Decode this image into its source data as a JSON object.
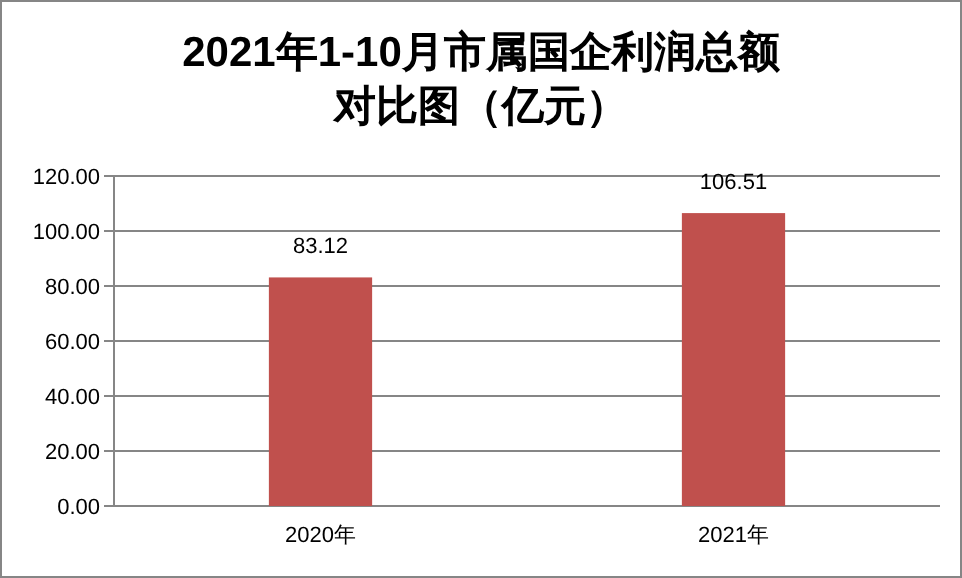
{
  "chart_data": {
    "type": "bar",
    "title": "2021年1-10月市属国企利润总额对比图（亿元）",
    "categories": [
      "2020年",
      "2021年"
    ],
    "values": [
      83.12,
      106.51
    ],
    "color": "#c0504d",
    "ylim": [
      0,
      120
    ],
    "yticks": [
      {
        "value": 0,
        "label": "0.00"
      },
      {
        "value": 20,
        "label": "20.00"
      },
      {
        "value": 40,
        "label": "40.00"
      },
      {
        "value": 60,
        "label": "60.00"
      },
      {
        "value": 80,
        "label": "80.00"
      },
      {
        "value": 100,
        "label": "100.00"
      },
      {
        "value": 120,
        "label": "120.00"
      }
    ],
    "grid": "y",
    "data_labels": true
  }
}
